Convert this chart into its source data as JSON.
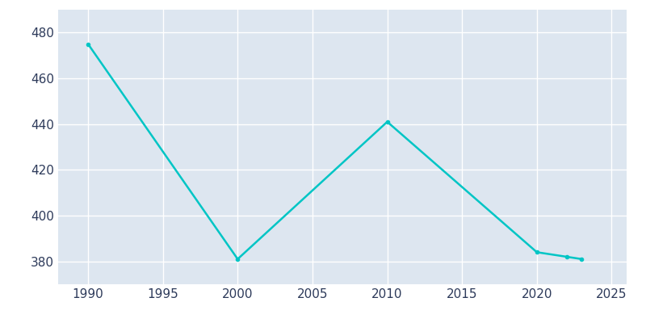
{
  "years": [
    1990,
    2000,
    2010,
    2020,
    2022,
    2023
  ],
  "population": [
    475,
    381,
    441,
    384,
    382,
    381
  ],
  "line_color": "#00C5C5",
  "axes_background_color": "#DDE6F0",
  "figure_background_color": "#FFFFFF",
  "grid_color": "#FFFFFF",
  "tick_color": "#2D3A5A",
  "xlim": [
    1988,
    2026
  ],
  "ylim": [
    370,
    490
  ],
  "yticks": [
    380,
    400,
    420,
    440,
    460,
    480
  ],
  "xticks": [
    1990,
    1995,
    2000,
    2005,
    2010,
    2015,
    2020,
    2025
  ],
  "line_width": 1.8,
  "marker_size": 3,
  "figsize": [
    8.0,
    4.0
  ],
  "dpi": 100,
  "tick_labelsize": 11
}
